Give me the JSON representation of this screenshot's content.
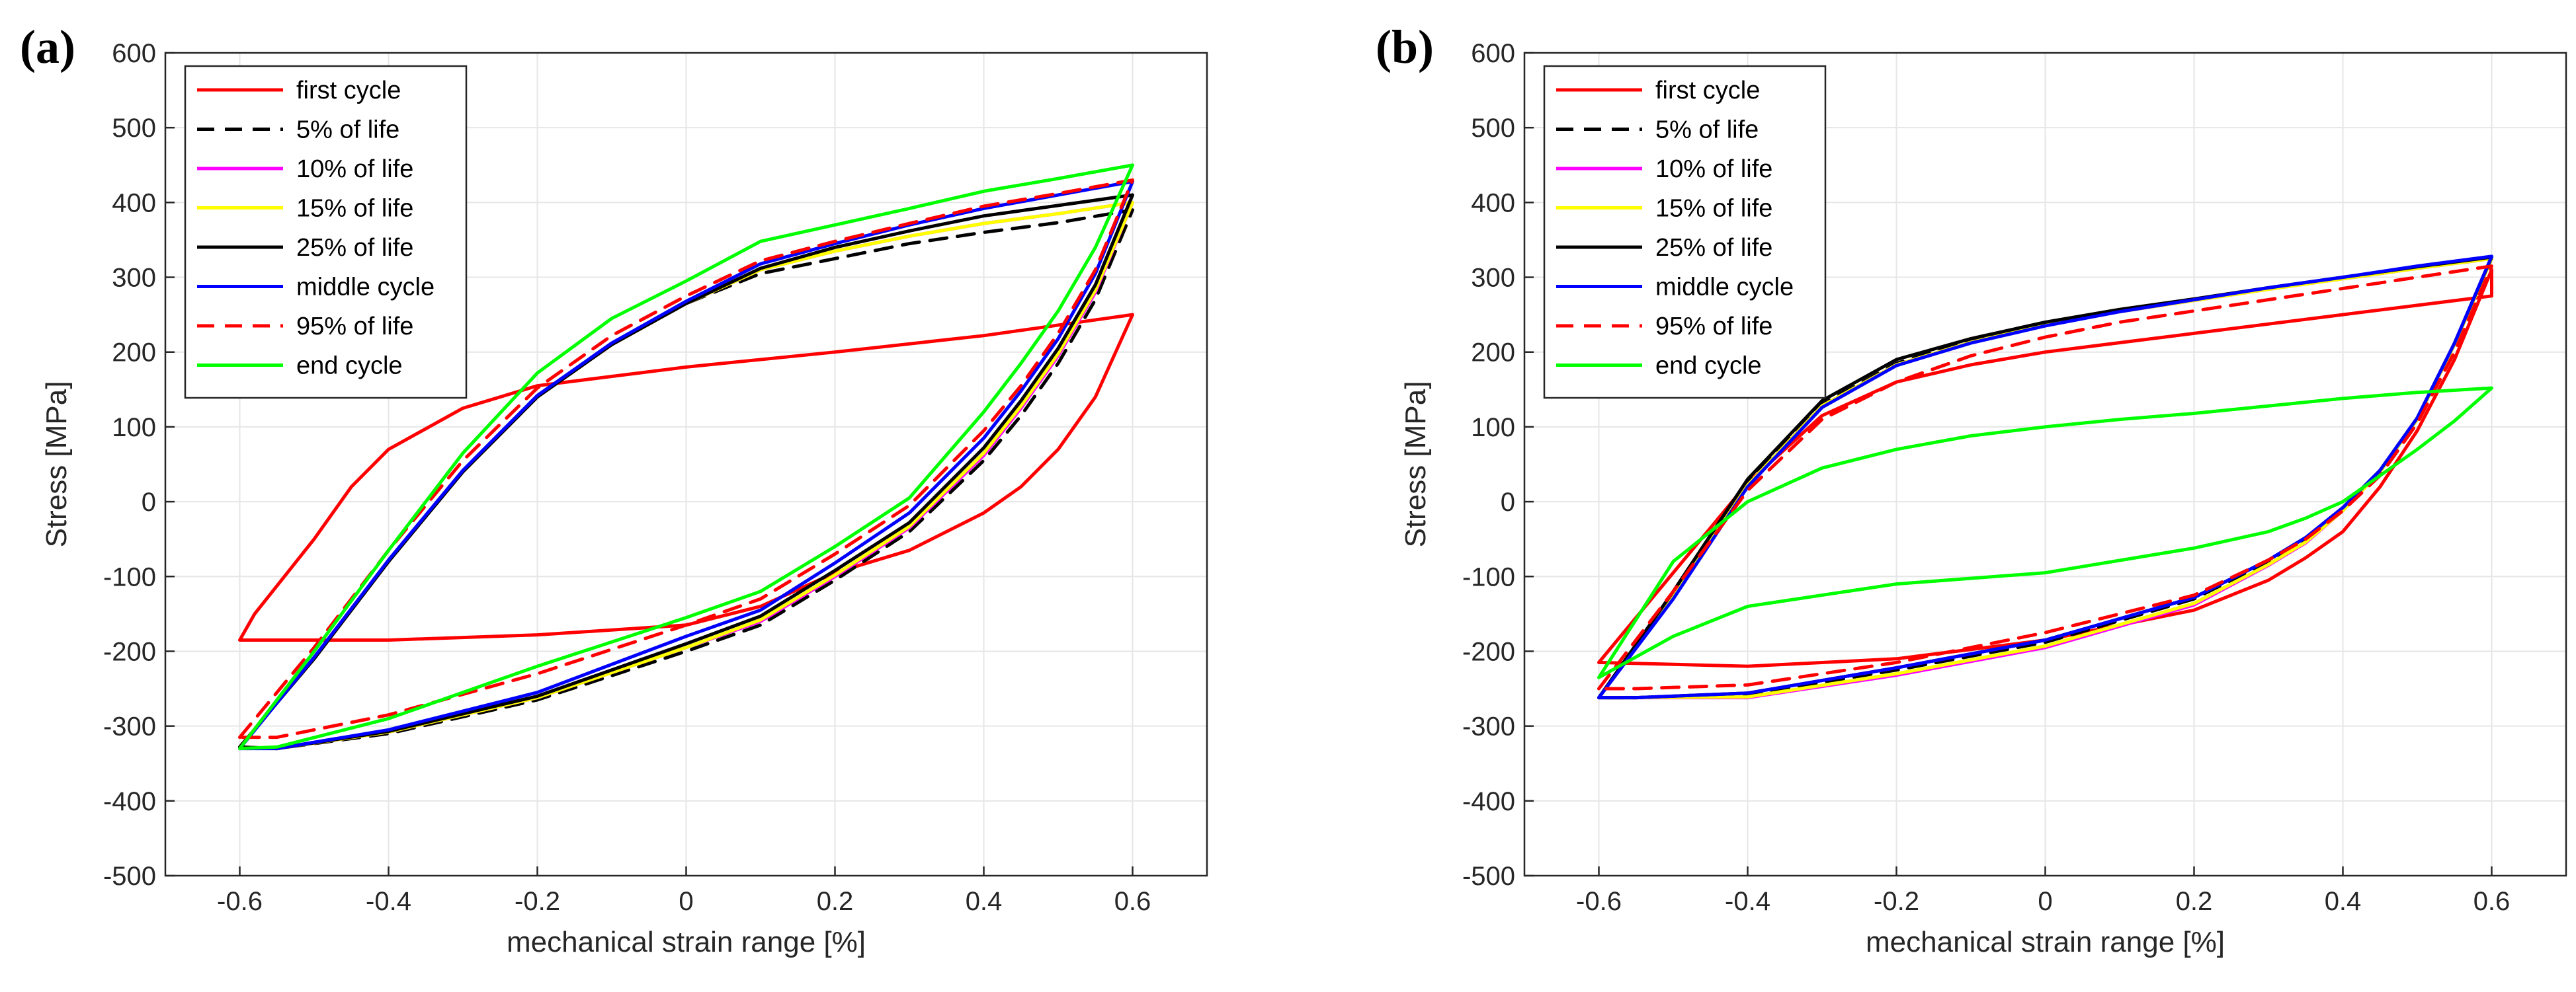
{
  "chart_data": [
    {
      "type": "line",
      "panel_label": "(a)",
      "xlabel": "mechanical strain range [%]",
      "ylabel": "Stress [MPa]",
      "xlim": [
        -0.7,
        0.7
      ],
      "ylim": [
        -500,
        600
      ],
      "xticks": [
        -0.6,
        -0.4,
        -0.2,
        0,
        0.2,
        0.4,
        0.6
      ],
      "xtick_labels": [
        "-0.6",
        "-0.4",
        "-0.2",
        "0",
        "0.2",
        "0.4",
        "0.6"
      ],
      "yticks": [
        -500,
        -400,
        -300,
        -200,
        -100,
        0,
        100,
        200,
        300,
        400,
        500,
        600
      ],
      "ytick_labels": [
        "-500",
        "-400",
        "-300",
        "-200",
        "-100",
        "0",
        "100",
        "200",
        "300",
        "400",
        "500",
        "600"
      ],
      "grid": true,
      "legend_position": "top-left",
      "series": [
        {
          "name": "first cycle",
          "color": "#ff0000",
          "dash": "solid",
          "x": [
            -0.6,
            -0.58,
            -0.5,
            -0.45,
            -0.4,
            -0.3,
            -0.2,
            0,
            0.2,
            0.4,
            0.6,
            0.55,
            0.5,
            0.45,
            0.4,
            0.3,
            0.2,
            0.1,
            0,
            -0.2,
            -0.4,
            -0.6,
            -0.6
          ],
          "y": [
            -185,
            -150,
            -50,
            20,
            70,
            125,
            155,
            180,
            200,
            222,
            250,
            140,
            70,
            20,
            -15,
            -65,
            -95,
            -140,
            -165,
            -178,
            -185,
            -185,
            -185
          ]
        },
        {
          "name": "5% of life",
          "color": "#000000",
          "dash": "dashed",
          "x": [
            -0.6,
            -0.5,
            -0.4,
            -0.3,
            -0.2,
            -0.1,
            0,
            0.1,
            0.2,
            0.3,
            0.4,
            0.5,
            0.6,
            0.55,
            0.5,
            0.45,
            0.4,
            0.3,
            0.2,
            0.1,
            0,
            -0.2,
            -0.4,
            -0.55,
            -0.6
          ],
          "y": [
            -328,
            -210,
            -80,
            40,
            140,
            210,
            265,
            305,
            325,
            345,
            360,
            373,
            390,
            270,
            185,
            115,
            55,
            -40,
            -105,
            -165,
            -200,
            -265,
            -310,
            -330,
            -328
          ]
        },
        {
          "name": "10% of life",
          "color": "#ff00ff",
          "dash": "solid",
          "x": [
            -0.6,
            -0.5,
            -0.4,
            -0.3,
            -0.2,
            -0.1,
            0,
            0.1,
            0.2,
            0.3,
            0.4,
            0.5,
            0.6,
            0.55,
            0.5,
            0.45,
            0.4,
            0.3,
            0.2,
            0.1,
            0,
            -0.2,
            -0.4,
            -0.55,
            -0.6
          ],
          "y": [
            -328,
            -210,
            -80,
            40,
            140,
            210,
            265,
            310,
            335,
            355,
            372,
            385,
            400,
            280,
            195,
            125,
            62,
            -35,
            -100,
            -160,
            -195,
            -262,
            -308,
            -330,
            -328
          ]
        },
        {
          "name": "15% of life",
          "color": "#ffff00",
          "dash": "solid",
          "x": [
            -0.6,
            -0.5,
            -0.4,
            -0.3,
            -0.2,
            -0.1,
            0,
            0.1,
            0.2,
            0.3,
            0.4,
            0.5,
            0.6,
            0.55,
            0.5,
            0.45,
            0.4,
            0.3,
            0.2,
            0.1,
            0,
            -0.2,
            -0.4,
            -0.55,
            -0.6
          ],
          "y": [
            -328,
            -210,
            -80,
            40,
            140,
            210,
            265,
            310,
            335,
            355,
            372,
            385,
            400,
            283,
            198,
            128,
            65,
            -33,
            -98,
            -158,
            -195,
            -262,
            -308,
            -330,
            -328
          ]
        },
        {
          "name": "25% of life",
          "color": "#000000",
          "dash": "solid",
          "x": [
            -0.6,
            -0.5,
            -0.4,
            -0.3,
            -0.2,
            -0.1,
            0,
            0.1,
            0.2,
            0.3,
            0.4,
            0.5,
            0.6,
            0.55,
            0.5,
            0.45,
            0.4,
            0.3,
            0.2,
            0.1,
            0,
            -0.2,
            -0.4,
            -0.55,
            -0.6
          ],
          "y": [
            -328,
            -210,
            -80,
            40,
            140,
            210,
            265,
            312,
            340,
            362,
            382,
            396,
            410,
            290,
            205,
            135,
            72,
            -28,
            -92,
            -153,
            -190,
            -260,
            -307,
            -330,
            -328
          ]
        },
        {
          "name": "middle cycle",
          "color": "#0000ff",
          "dash": "solid",
          "x": [
            -0.6,
            -0.5,
            -0.4,
            -0.3,
            -0.2,
            -0.1,
            0,
            0.1,
            0.2,
            0.3,
            0.4,
            0.5,
            0.6,
            0.55,
            0.5,
            0.45,
            0.4,
            0.3,
            0.2,
            0.1,
            0,
            -0.2,
            -0.4,
            -0.55,
            -0.6
          ],
          "y": [
            -330,
            -208,
            -78,
            42,
            142,
            212,
            268,
            318,
            345,
            370,
            392,
            410,
            428,
            305,
            218,
            148,
            85,
            -15,
            -82,
            -145,
            -180,
            -255,
            -305,
            -330,
            -330
          ]
        },
        {
          "name": "95% of life",
          "color": "#ff0000",
          "dash": "dashed",
          "x": [
            -0.6,
            -0.5,
            -0.4,
            -0.3,
            -0.2,
            -0.1,
            0,
            0.1,
            0.2,
            0.3,
            0.4,
            0.5,
            0.6,
            0.55,
            0.5,
            0.45,
            0.4,
            0.3,
            0.2,
            0.1,
            0,
            -0.2,
            -0.4,
            -0.55,
            -0.6
          ],
          "y": [
            -315,
            -195,
            -65,
            55,
            152,
            222,
            275,
            322,
            348,
            372,
            395,
            412,
            430,
            310,
            225,
            155,
            95,
            -5,
            -70,
            -130,
            -165,
            -230,
            -285,
            -315,
            -315
          ]
        },
        {
          "name": "end cycle",
          "color": "#00ff00",
          "dash": "solid",
          "x": [
            -0.6,
            -0.5,
            -0.4,
            -0.3,
            -0.2,
            -0.1,
            0,
            0.1,
            0.2,
            0.3,
            0.4,
            0.5,
            0.6,
            0.55,
            0.5,
            0.45,
            0.4,
            0.3,
            0.2,
            0.1,
            0,
            -0.2,
            -0.4,
            -0.55,
            -0.6
          ],
          "y": [
            -330,
            -200,
            -65,
            65,
            172,
            245,
            295,
            348,
            370,
            392,
            415,
            432,
            450,
            340,
            255,
            185,
            120,
            5,
            -60,
            -120,
            -155,
            -220,
            -290,
            -328,
            -330
          ]
        }
      ]
    },
    {
      "type": "line",
      "panel_label": "(b)",
      "xlabel": "mechanical strain range [%]",
      "ylabel": "Stress [MPa]",
      "xlim": [
        -0.7,
        0.7
      ],
      "ylim": [
        -500,
        600
      ],
      "xticks": [
        -0.6,
        -0.4,
        -0.2,
        0,
        0.2,
        0.4,
        0.6
      ],
      "xtick_labels": [
        "-0.6",
        "-0.4",
        "-0.2",
        "0",
        "0.2",
        "0.4",
        "0.6"
      ],
      "yticks": [
        -500,
        -400,
        -300,
        -200,
        -100,
        0,
        100,
        200,
        300,
        400,
        500,
        600
      ],
      "ytick_labels": [
        "-500",
        "-400",
        "-300",
        "-200",
        "-100",
        "0",
        "100",
        "200",
        "300",
        "400",
        "500",
        "600"
      ],
      "grid": true,
      "legend_position": "top-left",
      "series": [
        {
          "name": "first cycle",
          "color": "#ff0000",
          "dash": "solid",
          "x": [
            -0.6,
            -0.5,
            -0.4,
            -0.3,
            -0.2,
            -0.1,
            0,
            0.2,
            0.4,
            0.6,
            0.6,
            0.55,
            0.5,
            0.45,
            0.4,
            0.35,
            0.3,
            0.2,
            0,
            -0.2,
            -0.4,
            -0.6
          ],
          "y": [
            -215,
            -95,
            25,
            115,
            160,
            183,
            200,
            225,
            250,
            275,
            310,
            190,
            95,
            20,
            -40,
            -75,
            -105,
            -145,
            -185,
            -210,
            -220,
            -215
          ]
        },
        {
          "name": "5% of life",
          "color": "#000000",
          "dash": "dashed",
          "x": [
            -0.6,
            -0.5,
            -0.4,
            -0.3,
            -0.2,
            -0.1,
            0,
            0.1,
            0.2,
            0.3,
            0.4,
            0.5,
            0.6,
            0.55,
            0.5,
            0.45,
            0.4,
            0.35,
            0.3,
            0.2,
            0,
            -0.2,
            -0.4,
            -0.55,
            -0.6
          ],
          "y": [
            -262,
            -125,
            25,
            130,
            185,
            215,
            238,
            255,
            270,
            285,
            298,
            312,
            325,
            210,
            110,
            40,
            -10,
            -50,
            -80,
            -130,
            -188,
            -225,
            -258,
            -262,
            -262
          ]
        },
        {
          "name": "10% of life",
          "color": "#ff00ff",
          "dash": "solid",
          "x": [
            -0.6,
            -0.5,
            -0.4,
            -0.3,
            -0.2,
            -0.1,
            0,
            0.1,
            0.2,
            0.3,
            0.4,
            0.5,
            0.6,
            0.55,
            0.5,
            0.45,
            0.4,
            0.35,
            0.3,
            0.2,
            0,
            -0.2,
            -0.4,
            -0.55,
            -0.6
          ],
          "y": [
            -262,
            -128,
            22,
            128,
            183,
            213,
            236,
            254,
            269,
            284,
            298,
            312,
            325,
            210,
            110,
            40,
            -12,
            -55,
            -85,
            -138,
            -195,
            -232,
            -262,
            -262,
            -262
          ]
        },
        {
          "name": "15% of life",
          "color": "#ffff00",
          "dash": "solid",
          "x": [
            -0.6,
            -0.5,
            -0.4,
            -0.3,
            -0.2,
            -0.1,
            0,
            0.1,
            0.2,
            0.3,
            0.4,
            0.5,
            0.6,
            0.55,
            0.5,
            0.45,
            0.4,
            0.35,
            0.3,
            0.2,
            0,
            -0.2,
            -0.4,
            -0.55,
            -0.6
          ],
          "y": [
            -262,
            -128,
            22,
            128,
            183,
            213,
            236,
            254,
            269,
            284,
            298,
            312,
            325,
            210,
            110,
            40,
            -12,
            -54,
            -84,
            -136,
            -193,
            -230,
            -261,
            -262,
            -262
          ]
        },
        {
          "name": "25% of life",
          "color": "#000000",
          "dash": "solid",
          "x": [
            -0.6,
            -0.5,
            -0.4,
            -0.3,
            -0.2,
            -0.1,
            0,
            0.1,
            0.2,
            0.3,
            0.4,
            0.5,
            0.6,
            0.55,
            0.5,
            0.45,
            0.4,
            0.35,
            0.3,
            0.2,
            0,
            -0.2,
            -0.4,
            -0.55,
            -0.6
          ],
          "y": [
            -262,
            -120,
            30,
            135,
            190,
            218,
            240,
            257,
            271,
            286,
            300,
            314,
            327,
            212,
            112,
            42,
            -8,
            -48,
            -78,
            -128,
            -185,
            -222,
            -256,
            -262,
            -262
          ]
        },
        {
          "name": "middle cycle",
          "color": "#0000ff",
          "dash": "solid",
          "x": [
            -0.6,
            -0.5,
            -0.4,
            -0.3,
            -0.2,
            -0.1,
            0,
            0.1,
            0.2,
            0.3,
            0.4,
            0.5,
            0.6,
            0.55,
            0.5,
            0.45,
            0.4,
            0.35,
            0.3,
            0.2,
            0,
            -0.2,
            -0.4,
            -0.55,
            -0.6
          ],
          "y": [
            -262,
            -130,
            20,
            126,
            182,
            212,
            235,
            254,
            270,
            286,
            300,
            315,
            328,
            212,
            112,
            42,
            -8,
            -48,
            -78,
            -128,
            -185,
            -222,
            -256,
            -262,
            -262
          ]
        },
        {
          "name": "95% of life",
          "color": "#ff0000",
          "dash": "dashed",
          "x": [
            -0.6,
            -0.5,
            -0.4,
            -0.3,
            -0.2,
            -0.1,
            0,
            0.1,
            0.2,
            0.3,
            0.4,
            0.5,
            0.6,
            0.55,
            0.5,
            0.45,
            0.4,
            0.35,
            0.3,
            0.2,
            0,
            -0.2,
            -0.4,
            -0.55,
            -0.6
          ],
          "y": [
            -250,
            -120,
            15,
            110,
            160,
            195,
            220,
            240,
            255,
            270,
            285,
            300,
            315,
            200,
            105,
            35,
            -12,
            -50,
            -78,
            -125,
            -175,
            -215,
            -245,
            -250,
            -250
          ]
        },
        {
          "name": "end cycle",
          "color": "#00ff00",
          "dash": "solid",
          "x": [
            -0.6,
            -0.5,
            -0.4,
            -0.3,
            -0.2,
            -0.1,
            0,
            0.1,
            0.2,
            0.3,
            0.4,
            0.5,
            0.6,
            0.55,
            0.5,
            0.45,
            0.4,
            0.35,
            0.3,
            0.2,
            0,
            -0.2,
            -0.4,
            -0.5,
            -0.6
          ],
          "y": [
            -235,
            -80,
            0,
            45,
            70,
            88,
            100,
            110,
            118,
            128,
            138,
            146,
            152,
            108,
            70,
            35,
            0,
            -22,
            -40,
            -62,
            -95,
            -110,
            -140,
            -180,
            -235
          ]
        }
      ]
    }
  ]
}
